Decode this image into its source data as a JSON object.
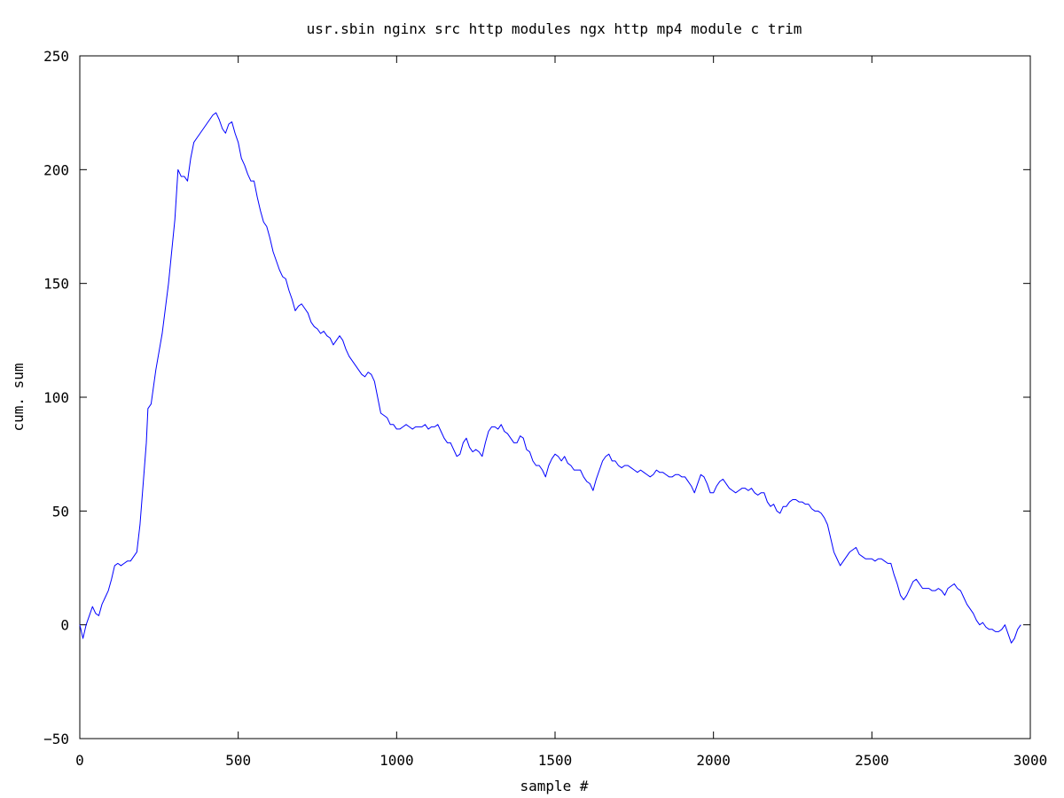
{
  "chart_data": {
    "type": "line",
    "title": "usr.sbin nginx src http modules ngx http mp4 module c trim",
    "xlabel": "sample #",
    "ylabel": "cum. sum",
    "xlim": [
      0,
      3000
    ],
    "ylim": [
      -50,
      250
    ],
    "xticks": [
      0,
      500,
      1000,
      1500,
      2000,
      2500,
      3000
    ],
    "yticks": [
      -50,
      0,
      50,
      100,
      150,
      200,
      250
    ],
    "grid": false,
    "legend": "none",
    "colors": {
      "series": "#0000ff",
      "axes": "#000000"
    },
    "series": [
      {
        "points": [
          [
            0,
            0
          ],
          [
            10,
            -6
          ],
          [
            20,
            0
          ],
          [
            30,
            4
          ],
          [
            40,
            8
          ],
          [
            50,
            5
          ],
          [
            60,
            4
          ],
          [
            70,
            9
          ],
          [
            80,
            12
          ],
          [
            90,
            15
          ],
          [
            100,
            20
          ],
          [
            110,
            26
          ],
          [
            120,
            27
          ],
          [
            130,
            26
          ],
          [
            140,
            27
          ],
          [
            150,
            28
          ],
          [
            160,
            28
          ],
          [
            170,
            30
          ],
          [
            180,
            32
          ],
          [
            190,
            44
          ],
          [
            200,
            62
          ],
          [
            210,
            80
          ],
          [
            215,
            95
          ],
          [
            225,
            97
          ],
          [
            240,
            112
          ],
          [
            260,
            128
          ],
          [
            280,
            150
          ],
          [
            300,
            178
          ],
          [
            310,
            200
          ],
          [
            320,
            197
          ],
          [
            330,
            197
          ],
          [
            340,
            195
          ],
          [
            350,
            205
          ],
          [
            360,
            212
          ],
          [
            370,
            214
          ],
          [
            380,
            216
          ],
          [
            390,
            218
          ],
          [
            400,
            220
          ],
          [
            410,
            222
          ],
          [
            420,
            224
          ],
          [
            430,
            225
          ],
          [
            440,
            222
          ],
          [
            450,
            218
          ],
          [
            460,
            216
          ],
          [
            470,
            220
          ],
          [
            480,
            221
          ],
          [
            490,
            216
          ],
          [
            500,
            212
          ],
          [
            510,
            205
          ],
          [
            520,
            202
          ],
          [
            530,
            198
          ],
          [
            540,
            195
          ],
          [
            550,
            195
          ],
          [
            560,
            188
          ],
          [
            570,
            182
          ],
          [
            580,
            177
          ],
          [
            590,
            175
          ],
          [
            600,
            170
          ],
          [
            610,
            164
          ],
          [
            620,
            160
          ],
          [
            630,
            156
          ],
          [
            640,
            153
          ],
          [
            650,
            152
          ],
          [
            660,
            147
          ],
          [
            670,
            143
          ],
          [
            680,
            138
          ],
          [
            690,
            140
          ],
          [
            700,
            141
          ],
          [
            710,
            139
          ],
          [
            720,
            137
          ],
          [
            730,
            133
          ],
          [
            740,
            131
          ],
          [
            750,
            130
          ],
          [
            760,
            128
          ],
          [
            770,
            129
          ],
          [
            780,
            127
          ],
          [
            790,
            126
          ],
          [
            800,
            123
          ],
          [
            810,
            125
          ],
          [
            820,
            127
          ],
          [
            830,
            125
          ],
          [
            840,
            121
          ],
          [
            850,
            118
          ],
          [
            860,
            116
          ],
          [
            870,
            114
          ],
          [
            880,
            112
          ],
          [
            890,
            110
          ],
          [
            900,
            109
          ],
          [
            910,
            111
          ],
          [
            920,
            110
          ],
          [
            930,
            107
          ],
          [
            940,
            100
          ],
          [
            950,
            93
          ],
          [
            960,
            92
          ],
          [
            970,
            91
          ],
          [
            980,
            88
          ],
          [
            990,
            88
          ],
          [
            1000,
            86
          ],
          [
            1010,
            86
          ],
          [
            1020,
            87
          ],
          [
            1030,
            88
          ],
          [
            1040,
            87
          ],
          [
            1050,
            86
          ],
          [
            1060,
            87
          ],
          [
            1070,
            87
          ],
          [
            1080,
            87
          ],
          [
            1090,
            88
          ],
          [
            1100,
            86
          ],
          [
            1110,
            87
          ],
          [
            1120,
            87
          ],
          [
            1130,
            88
          ],
          [
            1140,
            85
          ],
          [
            1150,
            82
          ],
          [
            1160,
            80
          ],
          [
            1170,
            80
          ],
          [
            1180,
            77
          ],
          [
            1190,
            74
          ],
          [
            1200,
            75
          ],
          [
            1210,
            80
          ],
          [
            1220,
            82
          ],
          [
            1230,
            78
          ],
          [
            1240,
            76
          ],
          [
            1250,
            77
          ],
          [
            1260,
            76
          ],
          [
            1270,
            74
          ],
          [
            1280,
            80
          ],
          [
            1290,
            85
          ],
          [
            1300,
            87
          ],
          [
            1310,
            87
          ],
          [
            1320,
            86
          ],
          [
            1330,
            88
          ],
          [
            1340,
            85
          ],
          [
            1350,
            84
          ],
          [
            1360,
            82
          ],
          [
            1370,
            80
          ],
          [
            1380,
            80
          ],
          [
            1390,
            83
          ],
          [
            1400,
            82
          ],
          [
            1410,
            77
          ],
          [
            1420,
            76
          ],
          [
            1430,
            72
          ],
          [
            1440,
            70
          ],
          [
            1450,
            70
          ],
          [
            1460,
            68
          ],
          [
            1470,
            65
          ],
          [
            1480,
            70
          ],
          [
            1490,
            73
          ],
          [
            1500,
            75
          ],
          [
            1510,
            74
          ],
          [
            1520,
            72
          ],
          [
            1530,
            74
          ],
          [
            1540,
            71
          ],
          [
            1550,
            70
          ],
          [
            1560,
            68
          ],
          [
            1570,
            68
          ],
          [
            1580,
            68
          ],
          [
            1590,
            65
          ],
          [
            1600,
            63
          ],
          [
            1610,
            62
          ],
          [
            1620,
            59
          ],
          [
            1630,
            64
          ],
          [
            1640,
            68
          ],
          [
            1650,
            72
          ],
          [
            1660,
            74
          ],
          [
            1670,
            75
          ],
          [
            1680,
            72
          ],
          [
            1690,
            72
          ],
          [
            1700,
            70
          ],
          [
            1710,
            69
          ],
          [
            1720,
            70
          ],
          [
            1730,
            70
          ],
          [
            1740,
            69
          ],
          [
            1750,
            68
          ],
          [
            1760,
            67
          ],
          [
            1770,
            68
          ],
          [
            1780,
            67
          ],
          [
            1790,
            66
          ],
          [
            1800,
            65
          ],
          [
            1810,
            66
          ],
          [
            1820,
            68
          ],
          [
            1830,
            67
          ],
          [
            1840,
            67
          ],
          [
            1850,
            66
          ],
          [
            1860,
            65
          ],
          [
            1870,
            65
          ],
          [
            1880,
            66
          ],
          [
            1890,
            66
          ],
          [
            1900,
            65
          ],
          [
            1910,
            65
          ],
          [
            1920,
            63
          ],
          [
            1930,
            61
          ],
          [
            1940,
            58
          ],
          [
            1950,
            62
          ],
          [
            1960,
            66
          ],
          [
            1970,
            65
          ],
          [
            1980,
            62
          ],
          [
            1990,
            58
          ],
          [
            2000,
            58
          ],
          [
            2010,
            61
          ],
          [
            2020,
            63
          ],
          [
            2030,
            64
          ],
          [
            2040,
            62
          ],
          [
            2050,
            60
          ],
          [
            2060,
            59
          ],
          [
            2070,
            58
          ],
          [
            2080,
            59
          ],
          [
            2090,
            60
          ],
          [
            2100,
            60
          ],
          [
            2110,
            59
          ],
          [
            2120,
            60
          ],
          [
            2130,
            58
          ],
          [
            2140,
            57
          ],
          [
            2150,
            58
          ],
          [
            2160,
            58
          ],
          [
            2170,
            54
          ],
          [
            2180,
            52
          ],
          [
            2190,
            53
          ],
          [
            2200,
            50
          ],
          [
            2210,
            49
          ],
          [
            2220,
            52
          ],
          [
            2230,
            52
          ],
          [
            2240,
            54
          ],
          [
            2250,
            55
          ],
          [
            2260,
            55
          ],
          [
            2270,
            54
          ],
          [
            2280,
            54
          ],
          [
            2290,
            53
          ],
          [
            2300,
            53
          ],
          [
            2310,
            51
          ],
          [
            2320,
            50
          ],
          [
            2330,
            50
          ],
          [
            2340,
            49
          ],
          [
            2350,
            47
          ],
          [
            2360,
            44
          ],
          [
            2370,
            38
          ],
          [
            2380,
            32
          ],
          [
            2390,
            29
          ],
          [
            2400,
            26
          ],
          [
            2410,
            28
          ],
          [
            2420,
            30
          ],
          [
            2430,
            32
          ],
          [
            2440,
            33
          ],
          [
            2450,
            34
          ],
          [
            2460,
            31
          ],
          [
            2470,
            30
          ],
          [
            2480,
            29
          ],
          [
            2490,
            29
          ],
          [
            2500,
            29
          ],
          [
            2510,
            28
          ],
          [
            2520,
            29
          ],
          [
            2530,
            29
          ],
          [
            2540,
            28
          ],
          [
            2550,
            27
          ],
          [
            2560,
            27
          ],
          [
            2570,
            22
          ],
          [
            2580,
            18
          ],
          [
            2590,
            13
          ],
          [
            2600,
            11
          ],
          [
            2610,
            13
          ],
          [
            2620,
            16
          ],
          [
            2630,
            19
          ],
          [
            2640,
            20
          ],
          [
            2650,
            18
          ],
          [
            2660,
            16
          ],
          [
            2670,
            16
          ],
          [
            2680,
            16
          ],
          [
            2690,
            15
          ],
          [
            2700,
            15
          ],
          [
            2710,
            16
          ],
          [
            2720,
            15
          ],
          [
            2730,
            13
          ],
          [
            2740,
            16
          ],
          [
            2750,
            17
          ],
          [
            2760,
            18
          ],
          [
            2770,
            16
          ],
          [
            2780,
            15
          ],
          [
            2790,
            12
          ],
          [
            2800,
            9
          ],
          [
            2810,
            7
          ],
          [
            2820,
            5
          ],
          [
            2830,
            2
          ],
          [
            2840,
            0
          ],
          [
            2850,
            1
          ],
          [
            2860,
            -1
          ],
          [
            2870,
            -2
          ],
          [
            2880,
            -2
          ],
          [
            2890,
            -3
          ],
          [
            2900,
            -3
          ],
          [
            2910,
            -2
          ],
          [
            2920,
            0
          ],
          [
            2930,
            -4
          ],
          [
            2940,
            -8
          ],
          [
            2950,
            -6
          ],
          [
            2960,
            -2
          ],
          [
            2970,
            0
          ]
        ]
      }
    ]
  }
}
